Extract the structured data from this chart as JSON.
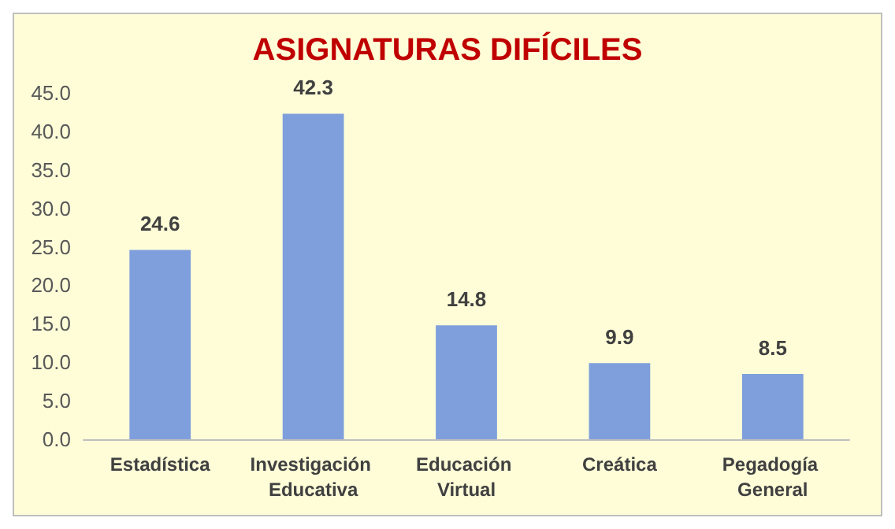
{
  "chart_data": {
    "type": "bar",
    "title": "ASIGNATURAS DIFÍCILES",
    "categories": [
      "Estadística",
      "Investigación Educativa",
      "Educación Virtual",
      "Creática",
      "Pegadogía General"
    ],
    "values": [
      24.6,
      42.3,
      14.8,
      9.9,
      8.5
    ],
    "color": "#7f9fdc",
    "ylim": [
      0,
      45
    ],
    "yticks": [
      {
        "value": 0,
        "label": "0.0"
      },
      {
        "value": 5,
        "label": "5.0"
      },
      {
        "value": 10,
        "label": "10.0"
      },
      {
        "value": 15,
        "label": "15.0"
      },
      {
        "value": 20,
        "label": "20.0"
      },
      {
        "value": 25,
        "label": "25.0"
      },
      {
        "value": 30,
        "label": "30.0"
      },
      {
        "value": 35,
        "label": "35.0"
      },
      {
        "value": 40,
        "label": "40.0"
      },
      {
        "value": 45,
        "label": "45.0"
      }
    ],
    "data_labels": true
  }
}
